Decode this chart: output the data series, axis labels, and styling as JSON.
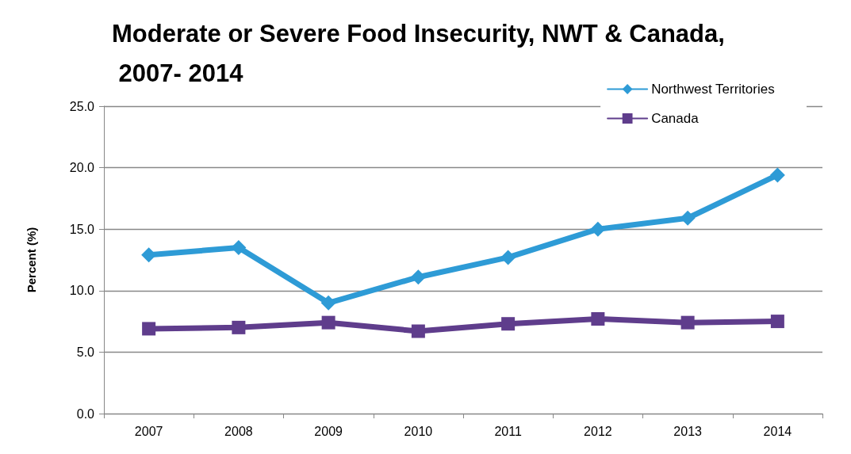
{
  "chart_data": {
    "type": "line",
    "title": "Moderate or Severe Food Insecurity, NWT & Canada, 2007- 2014",
    "ylabel": "Percent (%)",
    "categories": [
      "2007",
      "2008",
      "2009",
      "2010",
      "2011",
      "2012",
      "2013",
      "2014"
    ],
    "series": [
      {
        "name": "Northwest Territories",
        "color": "#2e9bd6",
        "marker": "diamond",
        "values": [
          12.9,
          13.5,
          9.0,
          11.1,
          12.7,
          15.0,
          15.9,
          19.4
        ]
      },
      {
        "name": "Canada",
        "color": "#5f3d8c",
        "marker": "square",
        "values": [
          6.9,
          7.0,
          7.4,
          6.7,
          7.3,
          7.7,
          7.4,
          7.5
        ]
      }
    ],
    "ylim": [
      0,
      25
    ],
    "yticks": [
      {
        "value": 0,
        "label": "0.0"
      },
      {
        "value": 5,
        "label": "5.0"
      },
      {
        "value": 10,
        "label": "10.0"
      },
      {
        "value": 15,
        "label": "15.0"
      },
      {
        "value": 20,
        "label": "20.0"
      },
      {
        "value": 25,
        "label": "25.0"
      }
    ],
    "grid": "y",
    "legend": "top right"
  }
}
